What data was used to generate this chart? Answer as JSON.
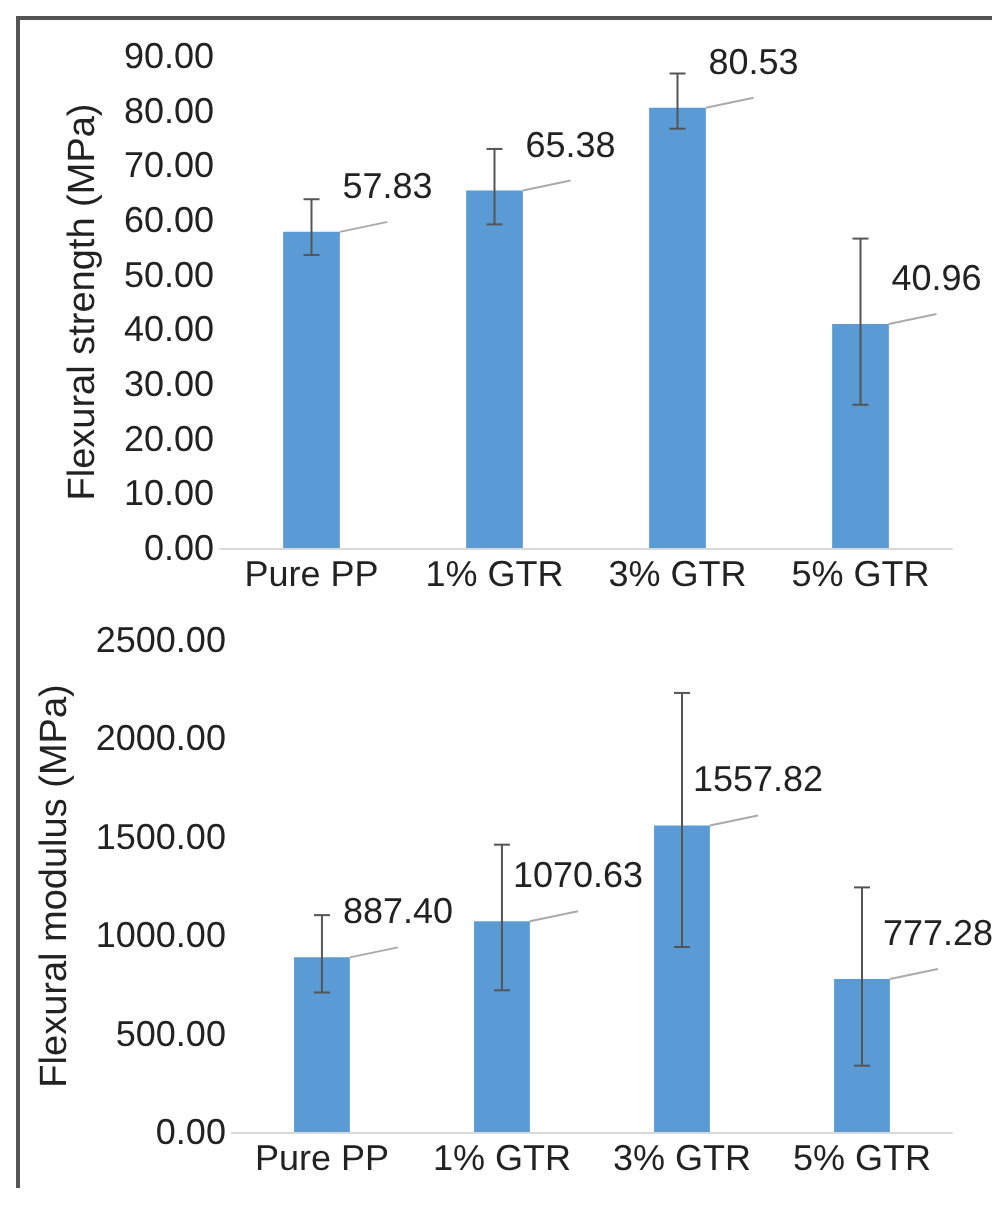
{
  "chart_data": [
    {
      "type": "bar",
      "ylabel": "Flexural strength (MPa)",
      "categories": [
        "Pure PP",
        "1% GTR",
        "3% GTR",
        "5% GTR"
      ],
      "values": [
        57.83,
        65.38,
        80.53,
        40.96
      ],
      "value_labels": [
        "57.83",
        "65.38",
        "80.53",
        "40.96"
      ],
      "color": "#5b9bd5",
      "errors": [
        [
          53.6,
          63.8
        ],
        [
          59.2,
          73.0
        ],
        [
          76.7,
          86.8
        ],
        [
          26.2,
          56.6
        ]
      ],
      "ylim": [
        0,
        90
      ],
      "yticks": [
        {
          "value": 0,
          "label": "0.00"
        },
        {
          "value": 10,
          "label": "10.00"
        },
        {
          "value": 20,
          "label": "20.00"
        },
        {
          "value": 30,
          "label": "30.00"
        },
        {
          "value": 40,
          "label": "40.00"
        },
        {
          "value": 50,
          "label": "50.00"
        },
        {
          "value": 60,
          "label": "60.00"
        },
        {
          "value": 70,
          "label": "70.00"
        },
        {
          "value": 80,
          "label": "80.00"
        },
        {
          "value": 90,
          "label": "90.00"
        }
      ],
      "grid": false
    },
    {
      "type": "bar",
      "ylabel": "Flexural modulus (MPa)",
      "categories": [
        "Pure PP",
        "1% GTR",
        "3% GTR",
        "5% GTR"
      ],
      "values": [
        887.4,
        1070.63,
        1557.82,
        777.28
      ],
      "value_labels": [
        "887.40",
        "1070.63",
        "1557.82",
        "777.28"
      ],
      "color": "#5b9bd5",
      "errors": [
        [
          709,
          1102
        ],
        [
          720,
          1460
        ],
        [
          940,
          2231
        ],
        [
          337,
          1243
        ]
      ],
      "ylim": [
        0,
        2500
      ],
      "yticks": [
        {
          "value": 0,
          "label": "0.00"
        },
        {
          "value": 500,
          "label": "500.00"
        },
        {
          "value": 1000,
          "label": "1000.00"
        },
        {
          "value": 1500,
          "label": "1500.00"
        },
        {
          "value": 2000,
          "label": "2000.00"
        },
        {
          "value": 2500,
          "label": "2500.00"
        }
      ],
      "grid": false
    }
  ]
}
